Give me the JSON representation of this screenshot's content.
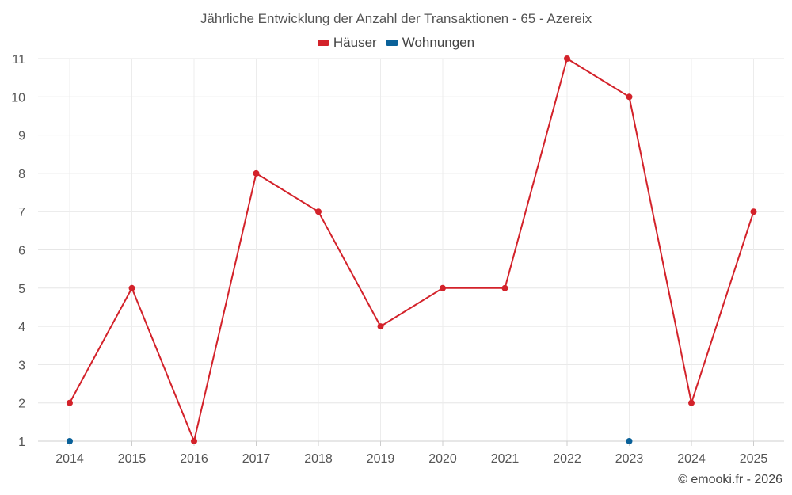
{
  "chart_data": {
    "type": "line",
    "title": "Jährliche Entwicklung der Anzahl der Transaktionen - 65 - Azereix",
    "categories": [
      "2014",
      "2015",
      "2016",
      "2017",
      "2018",
      "2019",
      "2020",
      "2021",
      "2022",
      "2023",
      "2024",
      "2025"
    ],
    "y_ticks": [
      "1",
      "2",
      "3",
      "4",
      "5",
      "6",
      "7",
      "8",
      "9",
      "10",
      "11"
    ],
    "ylim": [
      1,
      11
    ],
    "grid": true,
    "legend_position": "top-center",
    "series": [
      {
        "name": "Häuser",
        "color": "#d3222a",
        "values": [
          2,
          5,
          1,
          8,
          7,
          4,
          5,
          5,
          11,
          10,
          2,
          7
        ]
      },
      {
        "name": "Wohnungen",
        "color": "#0a6199",
        "values": [
          1,
          null,
          null,
          null,
          null,
          null,
          null,
          null,
          null,
          1,
          null,
          null
        ]
      }
    ]
  },
  "credit": "© emooki.fr - 2026"
}
